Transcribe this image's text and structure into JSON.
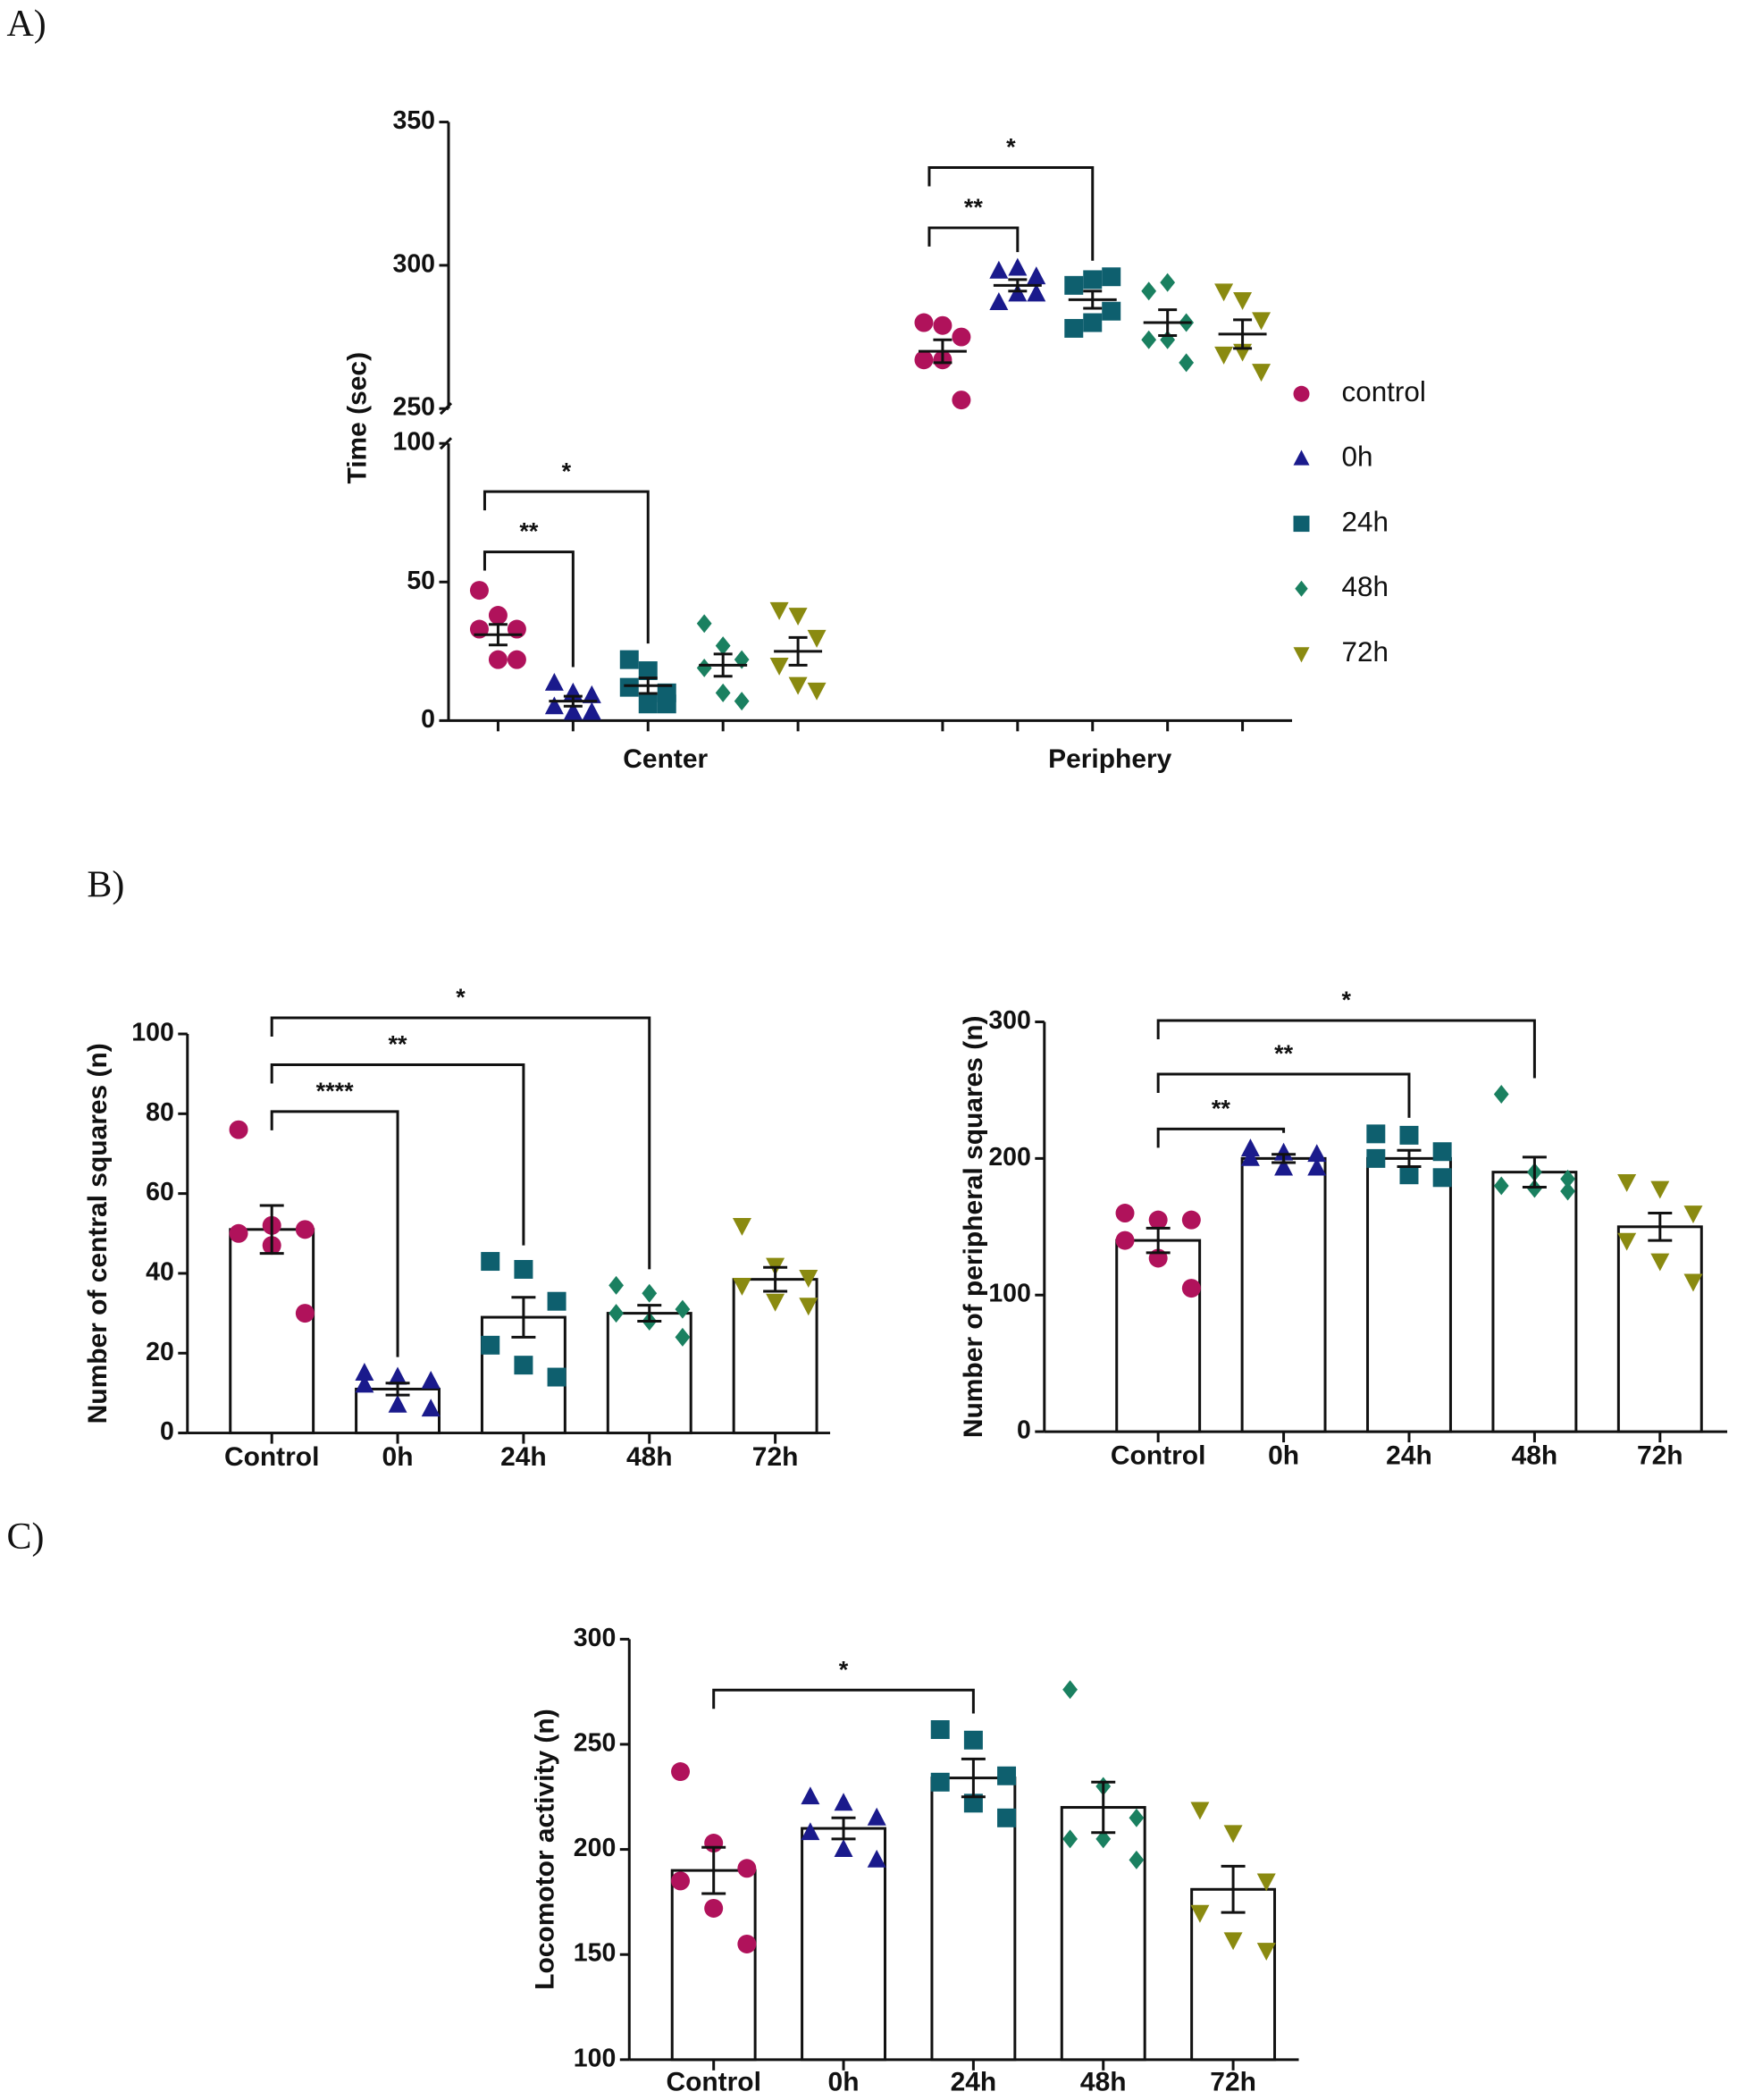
{
  "chart_data": [
    {
      "type": "dot",
      "label": "A)",
      "ylabel": "Time (sec)",
      "categories": [
        "Center",
        "Periphery"
      ],
      "ylim_segments": [
        [
          0,
          100
        ],
        [
          250,
          350
        ]
      ],
      "yticks": [
        0,
        50,
        100,
        250,
        300,
        350
      ],
      "axis_break": true,
      "legend": "right",
      "series": [
        {
          "name": "control",
          "color": "#b0125b",
          "marker": "circle",
          "values": [
            [
              47,
              38,
              33,
              33,
              22,
              22
            ],
            [
              280,
              279,
              275,
              267,
              267,
              253
            ]
          ],
          "means": [
            31,
            270
          ],
          "sem": [
            3.7,
            4
          ]
        },
        {
          "name": "0h",
          "color": "#1a1a8c",
          "marker": "triangle",
          "values": [
            [
              13.5,
              10,
              9,
              5,
              3,
              3
            ],
            [
              298,
              299,
              296,
              287,
              290,
              290
            ]
          ],
          "means": [
            7,
            293
          ],
          "sem": [
            1.8,
            2
          ]
        },
        {
          "name": "24h",
          "color": "#0e5f6e",
          "marker": "square",
          "values": [
            [
              22,
              18,
              10,
              12,
              6,
              6
            ],
            [
              293,
              295,
              296,
              278,
              280,
              284
            ]
          ],
          "means": [
            12.6,
            288
          ],
          "sem": [
            2.8,
            3
          ]
        },
        {
          "name": "48h",
          "color": "#1a8060",
          "marker": "diamond",
          "values": [
            [
              35,
              27,
              22,
              19,
              10,
              7
            ],
            [
              291,
              294,
              280,
              274,
              274,
              266
            ]
          ],
          "means": [
            20,
            280
          ],
          "sem": [
            4,
            4.5
          ]
        },
        {
          "name": "72h",
          "color": "#8a8a10",
          "marker": "triangle-down",
          "values": [
            [
              40,
              38,
              30,
              20,
              13,
              11
            ],
            [
              291,
              288,
              281,
              269,
              270,
              263
            ]
          ],
          "means": [
            25,
            276
          ],
          "sem": [
            5,
            5
          ]
        }
      ],
      "annotations": [
        {
          "group": 0,
          "from": 0,
          "to": 1,
          "text": "**"
        },
        {
          "group": 0,
          "from": 0,
          "to": 2,
          "text": "*"
        },
        {
          "group": 1,
          "from": 0,
          "to": 1,
          "text": "**"
        },
        {
          "group": 1,
          "from": 0,
          "to": 2,
          "text": "*"
        }
      ]
    },
    {
      "type": "bar",
      "label": "B)",
      "ylabel": "Number of central squares (n)",
      "categories": [
        "Control",
        "0h",
        "24h",
        "48h",
        "72h"
      ],
      "ylim": [
        0,
        100
      ],
      "yticks": [
        0,
        20,
        40,
        60,
        80,
        100
      ],
      "values": [
        51,
        11,
        29,
        30,
        38.5
      ],
      "sem": [
        6,
        1.5,
        5,
        2,
        3
      ],
      "points": [
        [
          76,
          52,
          51,
          50,
          47,
          30
        ],
        [
          15,
          14,
          13,
          12,
          7,
          6
        ],
        [
          43,
          41,
          33,
          22,
          17,
          14
        ],
        [
          37,
          35,
          31,
          30,
          28,
          24
        ],
        [
          52,
          42,
          39,
          37,
          33,
          32
        ]
      ],
      "colors": [
        "#b0125b",
        "#1a1a8c",
        "#0e5f6e",
        "#1a8060",
        "#8a8a10"
      ],
      "markers": [
        "circle",
        "triangle",
        "square",
        "diamond",
        "triangle-down"
      ],
      "annotations": [
        {
          "from": 0,
          "to": 1,
          "text": "****"
        },
        {
          "from": 0,
          "to": 2,
          "text": "**"
        },
        {
          "from": 0,
          "to": 3,
          "text": "*"
        }
      ]
    },
    {
      "type": "bar",
      "ylabel": "Number of peripheral squares (n)",
      "categories": [
        "Control",
        "0h",
        "24h",
        "48h",
        "72h"
      ],
      "ylim": [
        0,
        300
      ],
      "yticks": [
        0,
        100,
        200,
        300
      ],
      "values": [
        140,
        200,
        200,
        190,
        150
      ],
      "sem": [
        9,
        3,
        6,
        11,
        10
      ],
      "points": [
        [
          160,
          155,
          155,
          140,
          127,
          105
        ],
        [
          207,
          204,
          203,
          200,
          193,
          193
        ],
        [
          218,
          217,
          205,
          200,
          188,
          186
        ],
        [
          247,
          190,
          185,
          180,
          178,
          176
        ],
        [
          183,
          178,
          160,
          140,
          125,
          110
        ]
      ],
      "colors": [
        "#b0125b",
        "#1a1a8c",
        "#0e5f6e",
        "#1a8060",
        "#8a8a10"
      ],
      "markers": [
        "circle",
        "triangle",
        "square",
        "diamond",
        "triangle-down"
      ],
      "annotations": [
        {
          "from": 0,
          "to": 1,
          "text": "**"
        },
        {
          "from": 0,
          "to": 2,
          "text": "**"
        },
        {
          "from": 0,
          "to": 3,
          "text": "*"
        }
      ]
    },
    {
      "type": "bar",
      "label": "C)",
      "ylabel": "Locomotor activity (n)",
      "categories": [
        "Control",
        "0h",
        "24h",
        "48h",
        "72h"
      ],
      "ylim": [
        100,
        300
      ],
      "yticks": [
        100,
        150,
        200,
        250,
        300
      ],
      "values": [
        190,
        210,
        234,
        220,
        181
      ],
      "sem": [
        11,
        5,
        9,
        12,
        11
      ],
      "points": [
        [
          237,
          203,
          191,
          185,
          172,
          155
        ],
        [
          225,
          222,
          215,
          208,
          200,
          195
        ],
        [
          257,
          252,
          235,
          232,
          222,
          215
        ],
        [
          276,
          230,
          215,
          205,
          205,
          195
        ],
        [
          219,
          208,
          185,
          170,
          157,
          152
        ]
      ],
      "colors": [
        "#b0125b",
        "#1a1a8c",
        "#0e5f6e",
        "#1a8060",
        "#8a8a10"
      ],
      "markers": [
        "circle",
        "triangle",
        "square",
        "diamond",
        "triangle-down"
      ],
      "annotations": [
        {
          "from": 0,
          "to": 2,
          "text": "*"
        }
      ]
    }
  ]
}
